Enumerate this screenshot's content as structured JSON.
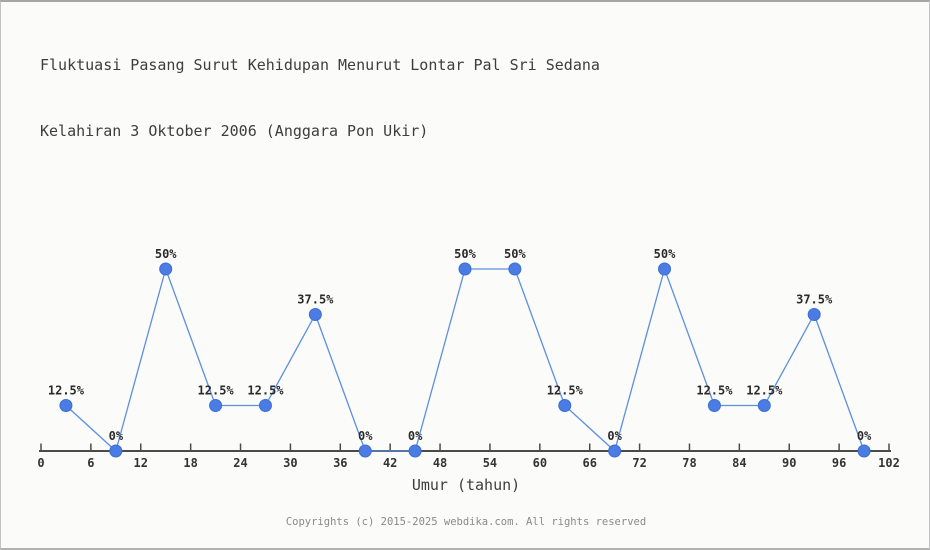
{
  "title": {
    "line1": "Fluktuasi Pasang Surut Kehidupan Menurut Lontar Pal Sri Sedana",
    "line2": "Kelahiran 3 Oktober 2006 (Anggara Pon Ukir)"
  },
  "chart_data": {
    "type": "line",
    "title": "Fluktuasi Pasang Surut Kehidupan Menurut Lontar Pal Sri Sedana Kelahiran 3 Oktober 2006 (Anggara Pon Ukir)",
    "xlabel": "Umur (tahun)",
    "ylabel": "",
    "x": [
      3,
      9,
      15,
      21,
      27,
      33,
      39,
      45,
      51,
      57,
      63,
      69,
      75,
      81,
      87,
      93,
      99
    ],
    "values": [
      12.5,
      0,
      50,
      12.5,
      12.5,
      37.5,
      0,
      0,
      50,
      50,
      12.5,
      0,
      50,
      12.5,
      12.5,
      37.5,
      0
    ],
    "point_labels": [
      "12.5%",
      "0%",
      "50%",
      "12.5%",
      "12.5%",
      "37.5%",
      "0%",
      "0%",
      "50%",
      "50%",
      "12.5%",
      "0%",
      "50%",
      "12.5%",
      "12.5%",
      "37.5%",
      "0%"
    ],
    "x_ticks": [
      0,
      6,
      12,
      18,
      24,
      30,
      36,
      42,
      48,
      54,
      60,
      66,
      72,
      78,
      84,
      90,
      96,
      102
    ],
    "xlim": [
      0,
      102
    ],
    "ylim": [
      0,
      50
    ],
    "grid": false,
    "legend": "none",
    "colors": {
      "line": "#5d8fdd",
      "marker_fill": "#4a7ce4",
      "marker_stroke": "#3b6fd2",
      "axis": "#4a4a4a",
      "tick_label": "#333333",
      "point_label": "#2b2b2b"
    }
  },
  "footer": {
    "text": "Copyrights (c) 2015-2025 webdika.com. All rights reserved"
  }
}
